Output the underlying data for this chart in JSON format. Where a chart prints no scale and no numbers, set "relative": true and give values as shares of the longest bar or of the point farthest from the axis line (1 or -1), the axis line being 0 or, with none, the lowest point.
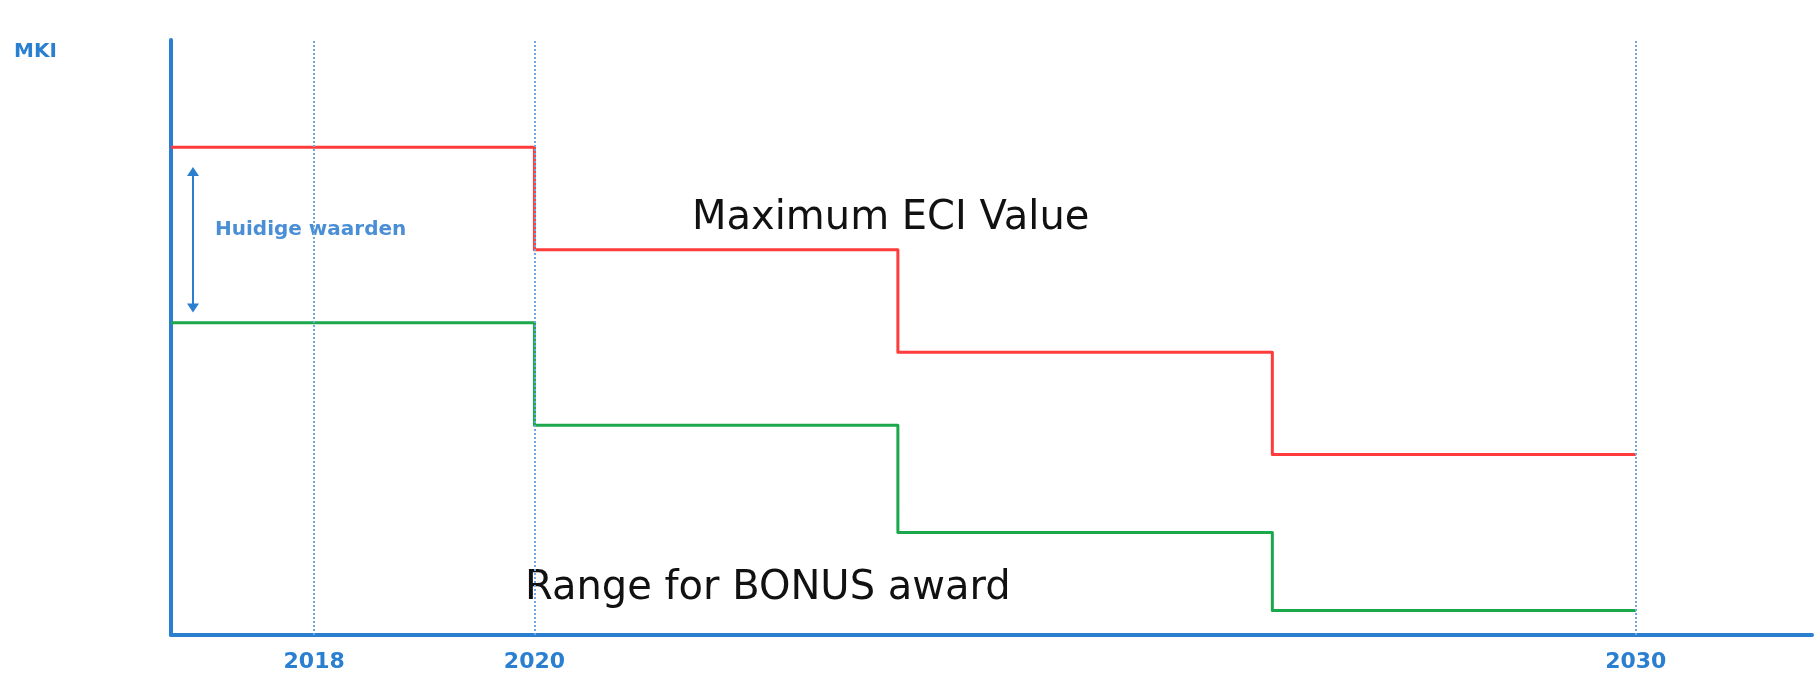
{
  "chart_data": {
    "type": "step",
    "relative": true,
    "xlim": [
      2016.7,
      2031.6
    ],
    "xticks": [
      2018,
      2020,
      2030
    ],
    "x": [
      2016.7,
      2020,
      2023.3,
      2026.7,
      2030
    ],
    "series": [
      {
        "color": "#ff3b3b",
        "values": [
          1,
          0.79,
          0.58,
          0.37,
          0.37
        ]
      },
      {
        "color": "#1aa84a",
        "values": [
          0.64,
          0.43,
          0.21,
          0.05,
          0.05
        ]
      }
    ],
    "ref_lines": [
      {
        "axis": "x",
        "value": 2018,
        "color": "#6fa8dc",
        "line_style": "dotted"
      },
      {
        "axis": "x",
        "value": 2020,
        "color": "#6fa8dc",
        "line_style": "dotted"
      },
      {
        "axis": "x",
        "value": 2030,
        "color": "#6fa8dc",
        "line_style": "dotted"
      }
    ],
    "annotations": [
      "MKI",
      "Huidige waarden",
      "Maximum ECI Value",
      "Range for BONUS award"
    ],
    "marker": "none",
    "line_style": "solid"
  }
}
